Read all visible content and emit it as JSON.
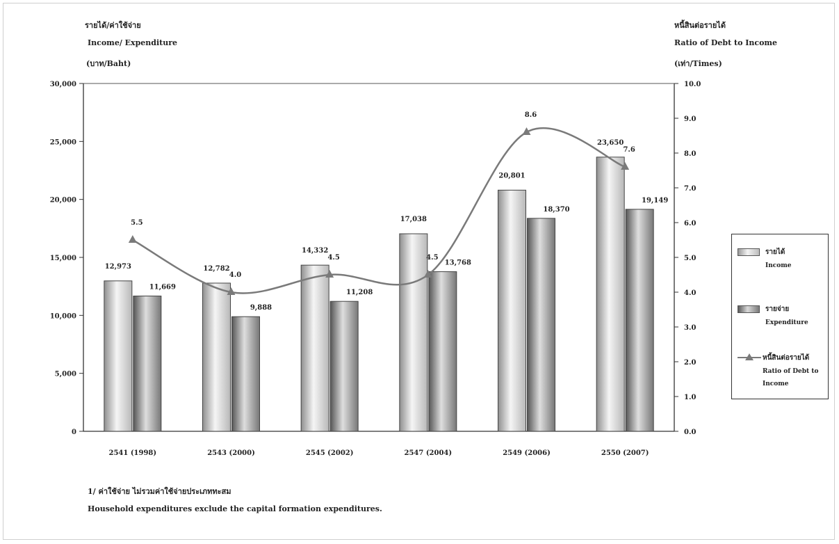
{
  "left_axis": {
    "title_th": "รายได้/ค่าใช้จ่าย",
    "title_en": "Income/ Expenditure",
    "unit": "(บาท/Baht)",
    "ticks": [
      "0",
      "5,000",
      "10,000",
      "15,000",
      "20,000",
      "25,000",
      "30,000"
    ]
  },
  "right_axis": {
    "title_th": "หนี้สินต่อรายได้",
    "title_en": "Ratio of Debt to Income",
    "unit": "(เท่า/Times)",
    "ticks": [
      "0.0",
      "1.0",
      "2.0",
      "3.0",
      "4.0",
      "5.0",
      "6.0",
      "7.0",
      "8.0",
      "9.0",
      "10.0"
    ]
  },
  "legend": [
    {
      "th": "รายได้",
      "en": "Income"
    },
    {
      "th": "รายจ่าย",
      "en": "Expenditure"
    },
    {
      "th": "หนี้สินต่อรายได้",
      "en": "Ratio of Debt to Income"
    }
  ],
  "footnote_th": "1/  ค่าใช้จ่าย  ไม่รวมค่าใช้จ่ายประเภททะสม",
  "footnote_en": "Household  expenditures  exclude  the  capital  formation  expenditures.",
  "colors": {
    "income": "#e6e6e6",
    "expenditure": "#b5b5b5",
    "ratio": "#7a7a7a"
  },
  "chart_data": {
    "type": "bar",
    "categories": [
      "2541  (1998)",
      "2543  (2000)",
      "2545  (2002)",
      "2547  (2004)",
      "2549  (2006)",
      "2550  (2007)"
    ],
    "series": [
      {
        "name": "Income",
        "values": [
          12973,
          12782,
          14332,
          17038,
          20801,
          23650
        ],
        "labels": [
          "12,973",
          "12,782",
          "14,332",
          "17,038",
          "20,801",
          "23,650"
        ]
      },
      {
        "name": "Expenditure",
        "values": [
          11669,
          9888,
          11208,
          13768,
          18370,
          19149
        ],
        "labels": [
          "11,669",
          "9,888",
          "11,208",
          "13,768",
          "18,370",
          "19,149"
        ]
      },
      {
        "name": "Ratio of Debt to Income",
        "type": "line",
        "axis": "right",
        "values": [
          5.5,
          4.0,
          4.5,
          4.5,
          8.6,
          7.6
        ],
        "labels": [
          "5.5",
          "4.0",
          "4.5",
          "4.5",
          "8.6",
          "7.6"
        ]
      }
    ],
    "ylim": [
      0,
      30000
    ],
    "y2lim": [
      0,
      10
    ],
    "legend_position": "right",
    "grid": false
  }
}
